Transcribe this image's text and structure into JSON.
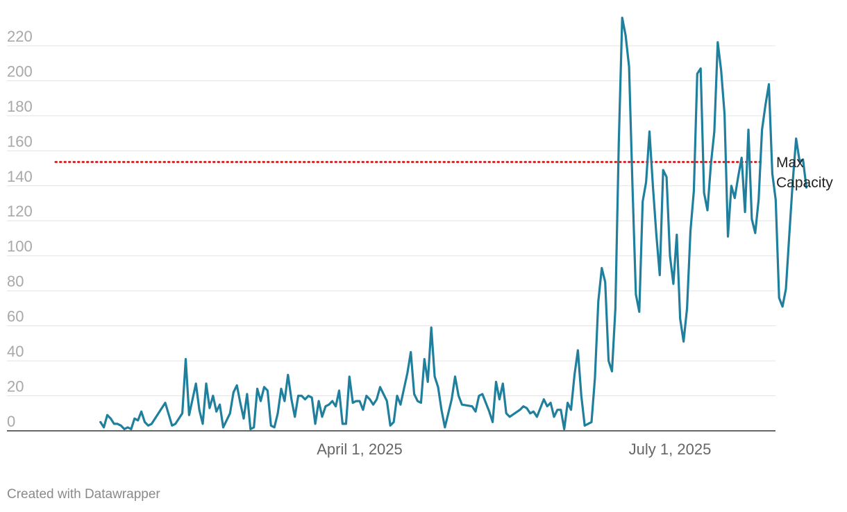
{
  "chart_data": {
    "type": "line",
    "title": "",
    "xlabel": "",
    "ylabel": "",
    "x_axis": {
      "type": "date",
      "tick_labels": [
        "April 1, 2025",
        "July 1, 2025"
      ],
      "tick_dates": [
        "2025-04-01",
        "2025-07-01"
      ]
    },
    "y_axis": {
      "ylim": [
        0,
        230
      ],
      "ticks": [
        0,
        20,
        40,
        60,
        80,
        100,
        120,
        140,
        160,
        180,
        200,
        220
      ]
    },
    "grid": "horizontal",
    "series": [
      {
        "color": "#1f7f9c",
        "points": [
          [
            "2025-01-15",
            5
          ],
          [
            "2025-01-16",
            2
          ],
          [
            "2025-01-17",
            9
          ],
          [
            "2025-01-18",
            7
          ],
          [
            "2025-01-19",
            4
          ],
          [
            "2025-01-20",
            4
          ],
          [
            "2025-01-21",
            3
          ],
          [
            "2025-01-22",
            1
          ],
          [
            "2025-01-23",
            2
          ],
          [
            "2025-01-24",
            1
          ],
          [
            "2025-01-25",
            7
          ],
          [
            "2025-01-26",
            6
          ],
          [
            "2025-01-27",
            11
          ],
          [
            "2025-01-28",
            5
          ],
          [
            "2025-01-29",
            3
          ],
          [
            "2025-01-30",
            4
          ],
          [
            "2025-02-01",
            10
          ],
          [
            "2025-02-03",
            16
          ],
          [
            "2025-02-05",
            3
          ],
          [
            "2025-02-06",
            4
          ],
          [
            "2025-02-08",
            10
          ],
          [
            "2025-02-09",
            41
          ],
          [
            "2025-02-10",
            9
          ],
          [
            "2025-02-12",
            27
          ],
          [
            "2025-02-13",
            12
          ],
          [
            "2025-02-14",
            4
          ],
          [
            "2025-02-15",
            27
          ],
          [
            "2025-02-16",
            13
          ],
          [
            "2025-02-17",
            20
          ],
          [
            "2025-02-18",
            11
          ],
          [
            "2025-02-19",
            15
          ],
          [
            "2025-02-20",
            2
          ],
          [
            "2025-02-22",
            10
          ],
          [
            "2025-02-23",
            22
          ],
          [
            "2025-02-24",
            26
          ],
          [
            "2025-02-25",
            16
          ],
          [
            "2025-02-26",
            7
          ],
          [
            "2025-02-27",
            21
          ],
          [
            "2025-02-28",
            1
          ],
          [
            "2025-03-01",
            2
          ],
          [
            "2025-03-02",
            24
          ],
          [
            "2025-03-03",
            17
          ],
          [
            "2025-03-04",
            25
          ],
          [
            "2025-03-05",
            23
          ],
          [
            "2025-03-06",
            3
          ],
          [
            "2025-03-07",
            2
          ],
          [
            "2025-03-08",
            10
          ],
          [
            "2025-03-09",
            24
          ],
          [
            "2025-03-10",
            17
          ],
          [
            "2025-03-11",
            32
          ],
          [
            "2025-03-12",
            18
          ],
          [
            "2025-03-13",
            8
          ],
          [
            "2025-03-14",
            20
          ],
          [
            "2025-03-15",
            20
          ],
          [
            "2025-03-16",
            18
          ],
          [
            "2025-03-17",
            20
          ],
          [
            "2025-03-18",
            19
          ],
          [
            "2025-03-19",
            4
          ],
          [
            "2025-03-20",
            17
          ],
          [
            "2025-03-21",
            8
          ],
          [
            "2025-03-22",
            14
          ],
          [
            "2025-03-23",
            15
          ],
          [
            "2025-03-24",
            17
          ],
          [
            "2025-03-25",
            14
          ],
          [
            "2025-03-26",
            23
          ],
          [
            "2025-03-27",
            4
          ],
          [
            "2025-03-28",
            4
          ],
          [
            "2025-03-29",
            31
          ],
          [
            "2025-03-30",
            16
          ],
          [
            "2025-03-31",
            17
          ],
          [
            "2025-04-01",
            17
          ],
          [
            "2025-04-02",
            12
          ],
          [
            "2025-04-03",
            20
          ],
          [
            "2025-04-04",
            18
          ],
          [
            "2025-04-05",
            15
          ],
          [
            "2025-04-06",
            18
          ],
          [
            "2025-04-07",
            25
          ],
          [
            "2025-04-08",
            21
          ],
          [
            "2025-04-09",
            17
          ],
          [
            "2025-04-10",
            3
          ],
          [
            "2025-04-11",
            5
          ],
          [
            "2025-04-12",
            20
          ],
          [
            "2025-04-13",
            15
          ],
          [
            "2025-04-15",
            33
          ],
          [
            "2025-04-16",
            45
          ],
          [
            "2025-04-17",
            21
          ],
          [
            "2025-04-18",
            17
          ],
          [
            "2025-04-19",
            16
          ],
          [
            "2025-04-20",
            41
          ],
          [
            "2025-04-21",
            28
          ],
          [
            "2025-04-22",
            59
          ],
          [
            "2025-04-23",
            31
          ],
          [
            "2025-04-24",
            25
          ],
          [
            "2025-04-25",
            12
          ],
          [
            "2025-04-26",
            2
          ],
          [
            "2025-04-28",
            18
          ],
          [
            "2025-04-29",
            31
          ],
          [
            "2025-04-30",
            20
          ],
          [
            "2025-05-01",
            15
          ],
          [
            "2025-05-04",
            14
          ],
          [
            "2025-05-05",
            11
          ],
          [
            "2025-05-06",
            20
          ],
          [
            "2025-05-07",
            21
          ],
          [
            "2025-05-09",
            11
          ],
          [
            "2025-05-10",
            5
          ],
          [
            "2025-05-11",
            28
          ],
          [
            "2025-05-12",
            18
          ],
          [
            "2025-05-13",
            27
          ],
          [
            "2025-05-14",
            10
          ],
          [
            "2025-05-15",
            8
          ],
          [
            "2025-05-18",
            12
          ],
          [
            "2025-05-19",
            14
          ],
          [
            "2025-05-20",
            13
          ],
          [
            "2025-05-21",
            10
          ],
          [
            "2025-05-22",
            11
          ],
          [
            "2025-05-23",
            8
          ],
          [
            "2025-05-25",
            18
          ],
          [
            "2025-05-26",
            14
          ],
          [
            "2025-05-27",
            16
          ],
          [
            "2025-05-28",
            8
          ],
          [
            "2025-05-29",
            12
          ],
          [
            "2025-05-30",
            12
          ],
          [
            "2025-05-31",
            1
          ],
          [
            "2025-06-01",
            16
          ],
          [
            "2025-06-02",
            12
          ],
          [
            "2025-06-03",
            32
          ],
          [
            "2025-06-04",
            46
          ],
          [
            "2025-06-05",
            20
          ],
          [
            "2025-06-06",
            3
          ],
          [
            "2025-06-08",
            5
          ],
          [
            "2025-06-09",
            30
          ],
          [
            "2025-06-10",
            74
          ],
          [
            "2025-06-11",
            93
          ],
          [
            "2025-06-12",
            85
          ],
          [
            "2025-06-13",
            40
          ],
          [
            "2025-06-14",
            34
          ],
          [
            "2025-06-15",
            70
          ],
          [
            "2025-06-16",
            165
          ],
          [
            "2025-06-17",
            236
          ],
          [
            "2025-06-18",
            226
          ],
          [
            "2025-06-19",
            208
          ],
          [
            "2025-06-20",
            140
          ],
          [
            "2025-06-21",
            78
          ],
          [
            "2025-06-22",
            68
          ],
          [
            "2025-06-23",
            131
          ],
          [
            "2025-06-24",
            142
          ],
          [
            "2025-06-25",
            171
          ],
          [
            "2025-06-26",
            140
          ],
          [
            "2025-06-27",
            112
          ],
          [
            "2025-06-28",
            89
          ],
          [
            "2025-06-29",
            149
          ],
          [
            "2025-06-30",
            145
          ],
          [
            "2025-07-01",
            100
          ],
          [
            "2025-07-02",
            84
          ],
          [
            "2025-07-03",
            112
          ],
          [
            "2025-07-04",
            64
          ],
          [
            "2025-07-05",
            51
          ],
          [
            "2025-07-06",
            70
          ],
          [
            "2025-07-07",
            114
          ],
          [
            "2025-07-08",
            137
          ],
          [
            "2025-07-09",
            204
          ],
          [
            "2025-07-10",
            207
          ],
          [
            "2025-07-11",
            136
          ],
          [
            "2025-07-12",
            126
          ],
          [
            "2025-07-13",
            152
          ],
          [
            "2025-07-14",
            171
          ],
          [
            "2025-07-15",
            222
          ],
          [
            "2025-07-16",
            206
          ],
          [
            "2025-07-17",
            181
          ],
          [
            "2025-07-18",
            111
          ],
          [
            "2025-07-19",
            140
          ],
          [
            "2025-07-20",
            133
          ],
          [
            "2025-07-21",
            145
          ],
          [
            "2025-07-22",
            156
          ],
          [
            "2025-07-23",
            125
          ],
          [
            "2025-07-24",
            172
          ],
          [
            "2025-07-25",
            121
          ],
          [
            "2025-07-26",
            113
          ],
          [
            "2025-07-27",
            132
          ],
          [
            "2025-07-28",
            172
          ],
          [
            "2025-07-29",
            186
          ],
          [
            "2025-07-30",
            198
          ],
          [
            "2025-07-31",
            147
          ],
          [
            "2025-08-01",
            132
          ],
          [
            "2025-08-02",
            76
          ],
          [
            "2025-08-03",
            71
          ],
          [
            "2025-08-04",
            81
          ],
          [
            "2025-08-05",
            112
          ],
          [
            "2025-08-06",
            142
          ],
          [
            "2025-08-07",
            167
          ],
          [
            "2025-08-08",
            154
          ],
          [
            "2025-08-09",
            155
          ],
          [
            "2025-08-10",
            139
          ]
        ]
      }
    ],
    "reference_line": {
      "value": 153.6,
      "label": "Max Capacity",
      "color": "#d62728",
      "style": "dotted"
    }
  },
  "footer": {
    "credit": "Created with Datawrapper"
  }
}
